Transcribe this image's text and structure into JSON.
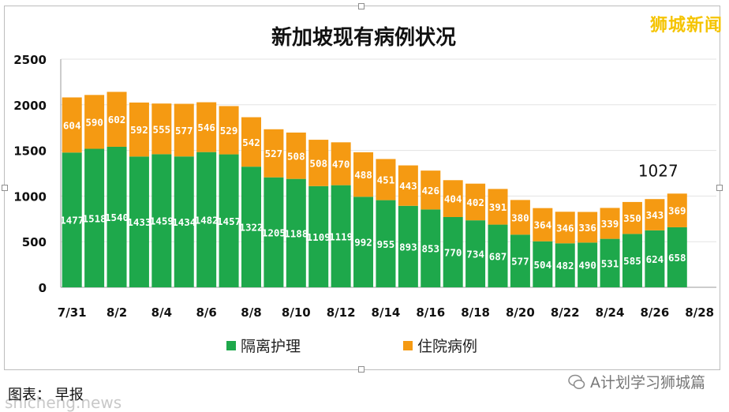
{
  "watermark_top_right": "狮城新闻",
  "footer_left_text": "图表： 早报 ",
  "footer_left_watermark": "shicheng.news",
  "footer_right_text": "A计划学习狮城篇",
  "colors": {
    "series1": "#1ea84b",
    "series2": "#f59a12",
    "grid": "#e3e3e3",
    "axis": "#9a9a9a"
  },
  "chart_data": {
    "type": "bar",
    "stacked": true,
    "title": "新加坡现有病例状况",
    "categories": [
      "7/31",
      "8/1",
      "8/2",
      "8/3",
      "8/4",
      "8/5",
      "8/6",
      "8/7",
      "8/8",
      "8/9",
      "8/10",
      "8/11",
      "8/12",
      "8/13",
      "8/14",
      "8/15",
      "8/16",
      "8/17",
      "8/18",
      "8/19",
      "8/20",
      "8/21",
      "8/22",
      "8/23",
      "8/24",
      "8/25",
      "8/26",
      "8/27"
    ],
    "x_tick_labels": [
      "7/31",
      "8/2",
      "8/4",
      "8/6",
      "8/8",
      "8/10",
      "8/12",
      "8/14",
      "8/16",
      "8/18",
      "8/20",
      "8/22",
      "8/24",
      "8/26",
      "8/28"
    ],
    "series": [
      {
        "name": "隔离护理",
        "color": "#1ea84b",
        "values": [
          1477,
          1518,
          1540,
          1433,
          1459,
          1434,
          1482,
          1457,
          1322,
          1205,
          1188,
          1109,
          1119,
          992,
          955,
          893,
          853,
          770,
          734,
          687,
          577,
          504,
          482,
          490,
          531,
          585,
          624,
          658
        ]
      },
      {
        "name": "住院病例",
        "color": "#f59a12",
        "values": [
          604,
          590,
          602,
          592,
          555,
          577,
          546,
          529,
          542,
          527,
          508,
          508,
          470,
          488,
          451,
          443,
          426,
          404,
          402,
          391,
          380,
          364,
          346,
          336,
          339,
          350,
          343,
          369
        ]
      }
    ],
    "y_ticks": [
      0,
      500,
      1000,
      1500,
      2000,
      2500
    ],
    "ylim": [
      0,
      2500
    ],
    "annotation": {
      "category": "8/27",
      "text": "1027"
    },
    "grid": true,
    "legend_position": "bottom"
  }
}
